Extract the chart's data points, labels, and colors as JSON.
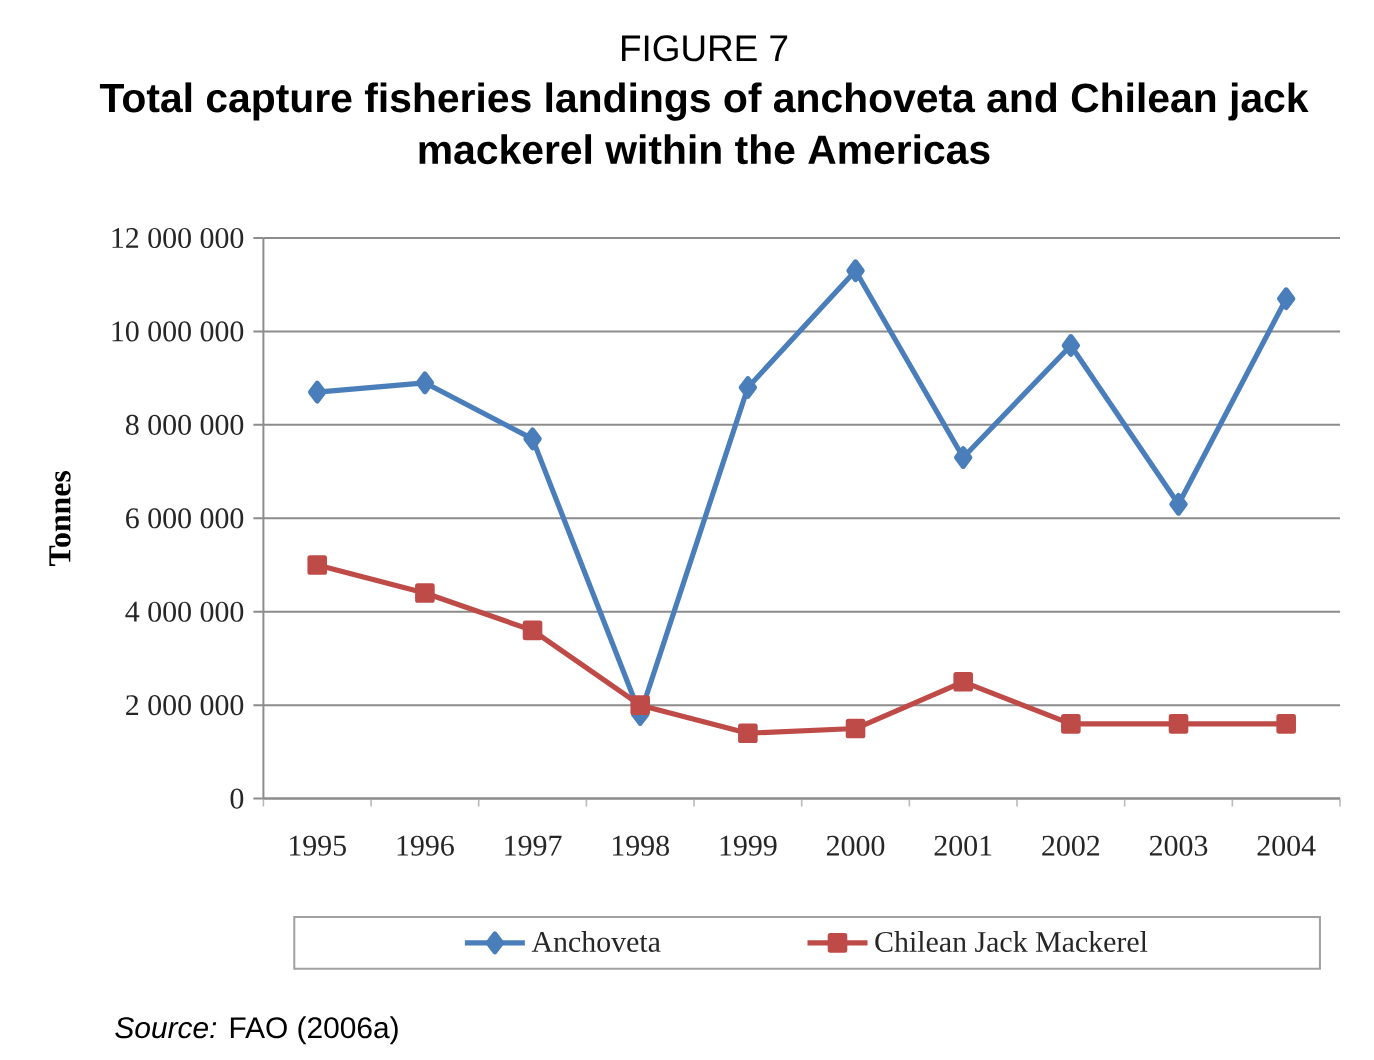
{
  "chart_data": {
    "type": "line",
    "subtitle": "FIGURE 7",
    "title": "Total capture fisheries landings of anchoveta and Chilean jack mackerel within the Americas",
    "ylabel": "Tonnes",
    "categories": [
      "1995",
      "1996",
      "1997",
      "1998",
      "1999",
      "2000",
      "2001",
      "2002",
      "2003",
      "2004"
    ],
    "series": [
      {
        "name": "Anchoveta",
        "color": "#4a7ebb",
        "marker": "diamond",
        "values": [
          8700000,
          8900000,
          7700000,
          1800000,
          8800000,
          11300000,
          7300000,
          9700000,
          6300000,
          10700000
        ]
      },
      {
        "name": "Chilean Jack Mackerel",
        "color": "#be4b48",
        "marker": "square",
        "values": [
          5000000,
          4400000,
          3600000,
          2000000,
          1400000,
          1500000,
          2500000,
          1600000,
          1600000,
          1600000
        ]
      }
    ],
    "ylim": [
      0,
      12000000
    ],
    "yticks": [
      0,
      {
        "value": 2000000,
        "label": "2 000 000"
      },
      {
        "value": 4000000,
        "label": "4 000 000"
      },
      {
        "value": 6000000,
        "label": "6 000 000"
      },
      {
        "value": 8000000,
        "label": "8 000 000"
      },
      {
        "value": 10000000,
        "label": "10 000 000"
      },
      {
        "value": 12000000,
        "label": "12 000 000"
      }
    ],
    "grid": "y",
    "legend": "bottom",
    "annotations": [
      "*Source:* FAO (2006a)"
    ]
  }
}
